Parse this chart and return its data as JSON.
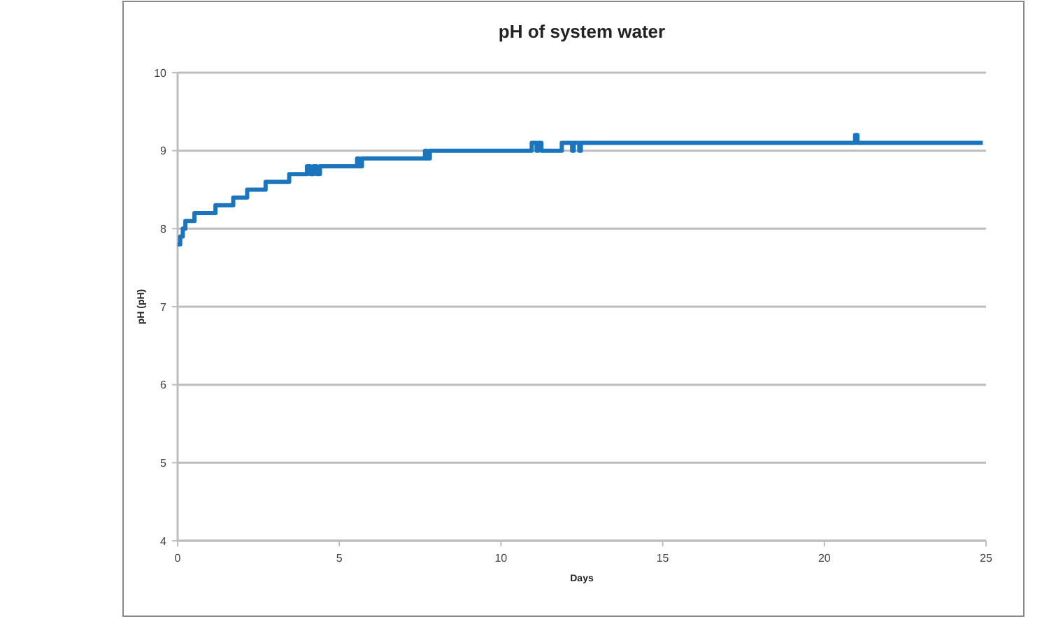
{
  "chart_data": {
    "type": "step",
    "title": "pH of system water",
    "xlabel": "Days",
    "ylabel": "pH (pH)",
    "x": [
      0,
      0.08,
      0.16,
      0.24,
      0.52,
      1.17,
      1.72,
      2.15,
      2.72,
      3.45,
      4.0,
      4.1,
      4.2,
      4.3,
      4.4,
      5.55,
      5.6,
      5.7,
      7.65,
      7.7,
      7.8,
      10.95,
      11.1,
      11.15,
      11.25,
      11.88,
      12.2,
      12.25,
      12.42,
      12.47,
      20.95,
      21.02,
      24.9
    ],
    "series": [
      {
        "color": "#1a75bc",
        "values": [
          7.8,
          7.9,
          8.0,
          8.1,
          8.2,
          8.3,
          8.4,
          8.5,
          8.6,
          8.7,
          8.8,
          8.7,
          8.8,
          8.7,
          8.8,
          8.9,
          8.8,
          8.9,
          9.0,
          8.9,
          9.0,
          9.1,
          9.0,
          9.1,
          9.0,
          9.1,
          9.0,
          9.1,
          9.0,
          9.1,
          9.2,
          9.1,
          9.1
        ]
      }
    ],
    "xlim": [
      0,
      25
    ],
    "xticks": [
      0,
      5,
      10,
      15,
      20,
      25
    ],
    "ylim": [
      4,
      10
    ],
    "yticks": [
      4,
      5,
      6,
      7,
      8,
      9,
      10
    ],
    "grid": "y",
    "marker": "none",
    "line_style": "solid"
  }
}
